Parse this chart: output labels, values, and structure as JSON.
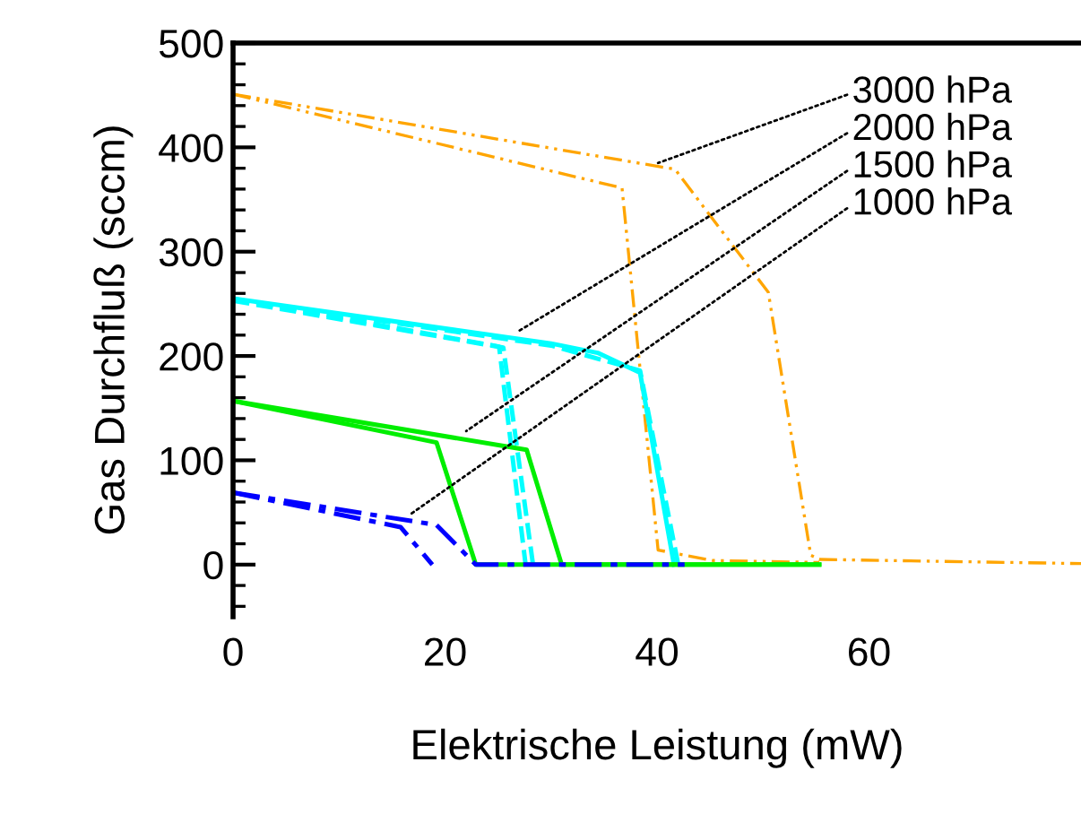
{
  "chart_data": {
    "type": "line",
    "xlabel": "Elektrische Leistung (mW)",
    "ylabel": "Gas Durchfluß (sccm)",
    "xlim": [
      0,
      80
    ],
    "xticks": [
      0,
      20,
      40,
      60
    ],
    "ylim": [
      -50,
      500
    ],
    "yticks": [
      0,
      100,
      200,
      300,
      400,
      500
    ],
    "grid": false,
    "series": [
      {
        "color": "#ffa500",
        "line_style": "dashdot",
        "x": [
          0,
          41.7,
          50.5,
          54.5,
          55.3,
          80
        ],
        "values": [
          451,
          379,
          261,
          9,
          5,
          1
        ]
      },
      {
        "color": "#ffa500",
        "line_style": "dashdot",
        "x": [
          0,
          36.7,
          40.1,
          45.2,
          55.3
        ],
        "values": [
          451,
          361,
          14,
          4,
          2
        ]
      },
      {
        "color": "#00ffff",
        "line_style": "solid",
        "x": [
          0,
          30,
          34.4,
          38.4,
          41.6
        ],
        "values": [
          255,
          212,
          203,
          184,
          0
        ]
      },
      {
        "color": "#00ffff",
        "line_style": "dashed",
        "x": [
          0,
          30,
          38.4,
          42
        ],
        "values": [
          254,
          210,
          186,
          0
        ]
      },
      {
        "color": "#00ffff",
        "line_style": "dashed",
        "x": [
          0,
          25.1,
          27.6
        ],
        "values": [
          255,
          209,
          0
        ]
      },
      {
        "color": "#00ffff",
        "line_style": "dashed",
        "x": [
          0,
          25.5,
          28.3
        ],
        "values": [
          253,
          208,
          0
        ]
      },
      {
        "color": "#00ee00",
        "line_style": "solid",
        "x": [
          0,
          19.2,
          22.9,
          55.3
        ],
        "values": [
          157,
          117,
          0,
          0
        ]
      },
      {
        "color": "#00ee00",
        "line_style": "solid",
        "x": [
          0,
          27.7,
          31,
          55.3
        ],
        "values": [
          157,
          110,
          0,
          0
        ]
      },
      {
        "color": "#0000ff",
        "line_style": "dashdot",
        "x": [
          0,
          19.2,
          22.9,
          42.6
        ],
        "values": [
          69,
          38,
          0,
          0
        ]
      },
      {
        "color": "#0000ff",
        "line_style": "dashdot",
        "x": [
          0,
          15.8,
          18.8
        ],
        "values": [
          69,
          36,
          0
        ]
      }
    ],
    "annotations": [
      {
        "text": "3000 hPa",
        "x": 40.1,
        "y": 385
      },
      {
        "text": "2000 hPa",
        "x": 26.8,
        "y": 223
      },
      {
        "text": "1500 hPa",
        "x": 22,
        "y": 128
      },
      {
        "text": "1000 hPa",
        "x": 16.7,
        "y": 48
      }
    ]
  }
}
